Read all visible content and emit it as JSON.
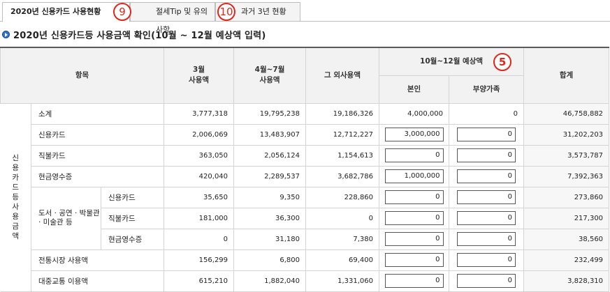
{
  "tabs": [
    {
      "label": "2020년 신용카드 사용현황",
      "active": true
    },
    {
      "label": "절세Tip 및 유의사항",
      "active": false
    },
    {
      "label": "과거 3년 현황",
      "active": false
    }
  ],
  "annotations": {
    "tab_marker_1": "9",
    "tab_marker_2": "10",
    "header_marker": "5"
  },
  "section_title": "2020년 신용카드등 사용금액 확인(10월 ~ 12월 예상액 입력)",
  "header": {
    "item": "항목",
    "march": "3월\n사용액",
    "apr_jul": "4월~7월\n사용액",
    "other": "그 외사용액",
    "estimate": "10월~12월 예상액",
    "self": "본인",
    "dependents": "부양가족",
    "total": "합계"
  },
  "group_label": "신용카드등 사용금액",
  "sub_group_label": "도서 · 공연 · 박물관 · 미술관 등",
  "rows": [
    {
      "label": "소계",
      "march": "3,777,318",
      "apr_jul": "19,795,238",
      "other": "19,186,326",
      "self": "4,000,000",
      "dep": "0",
      "total": "46,758,882"
    },
    {
      "label": "신용카드",
      "march": "2,006,069",
      "apr_jul": "13,483,907",
      "other": "12,712,227",
      "self": "3,000,000",
      "dep": "0",
      "total": "31,202,203"
    },
    {
      "label": "직불카드",
      "march": "363,050",
      "apr_jul": "2,056,124",
      "other": "1,154,613",
      "self": "0",
      "dep": "0",
      "total": "3,573,787"
    },
    {
      "label": "현금영수증",
      "march": "420,040",
      "apr_jul": "2,289,537",
      "other": "3,682,786",
      "self": "1,000,000",
      "dep": "0",
      "total": "7,392,363"
    },
    {
      "label": "신용카드",
      "march": "35,650",
      "apr_jul": "9,350",
      "other": "228,860",
      "self": "0",
      "dep": "0",
      "total": "273,860"
    },
    {
      "label": "직불카드",
      "march": "181,000",
      "apr_jul": "36,300",
      "other": "0",
      "self": "0",
      "dep": "0",
      "total": "217,300"
    },
    {
      "label": "현금영수증",
      "march": "0",
      "apr_jul": "31,180",
      "other": "7,380",
      "self": "0",
      "dep": "0",
      "total": "38,560"
    },
    {
      "label": "전통시장 사용액",
      "march": "156,299",
      "apr_jul": "6,800",
      "other": "69,400",
      "self": "0",
      "dep": "0",
      "total": "232,499"
    },
    {
      "label": "대중교통 이용액",
      "march": "615,210",
      "apr_jul": "1,882,040",
      "other": "1,331,060",
      "self": "0",
      "dep": "0",
      "total": "3,828,310"
    }
  ]
}
